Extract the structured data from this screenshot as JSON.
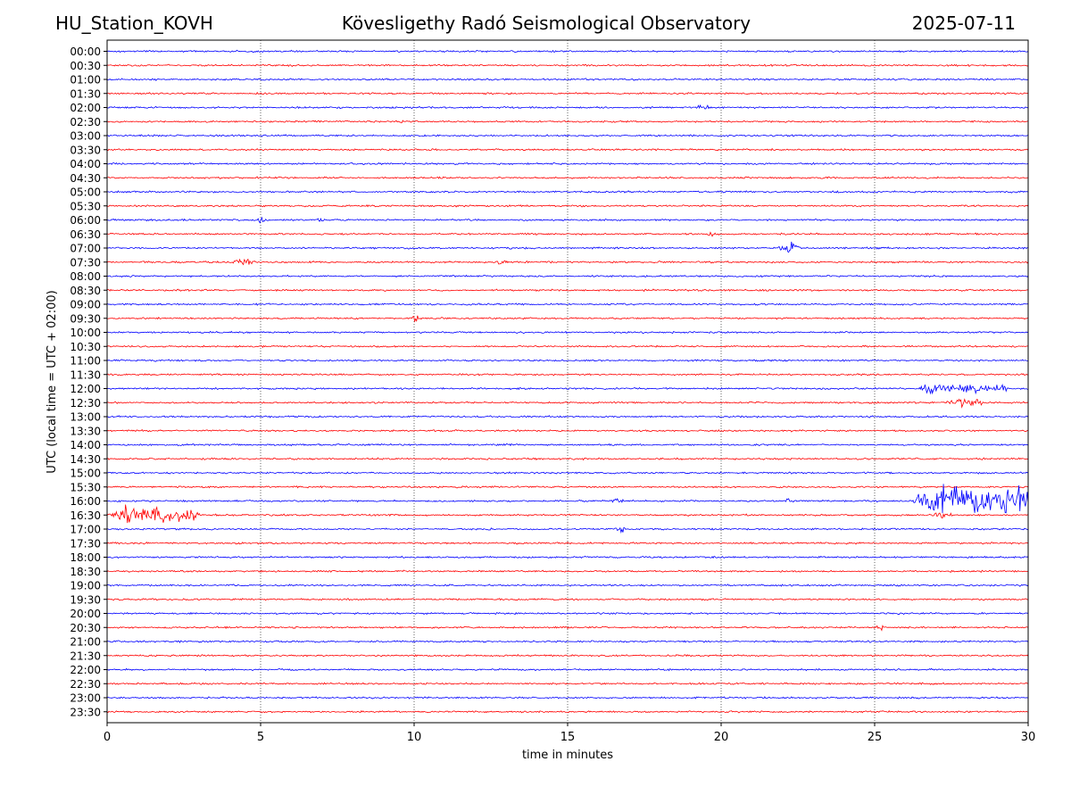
{
  "header": {
    "station": "HU_Station_KOVH",
    "observatory": "Kövesligethy Radó Seismological Observatory",
    "date": "2025-07-11"
  },
  "chart_data": {
    "type": "line",
    "title": "Kövesligethy Radó Seismological Observatory",
    "xlabel": "time in minutes",
    "ylabel": "UTC (local time = UTC + 02:00)",
    "xlim": [
      0,
      30
    ],
    "xticks": [
      0,
      5,
      10,
      15,
      20,
      25,
      30
    ],
    "grid": "vertical dotted at each x tick",
    "row_colors": [
      "#0000ff",
      "#ff0000"
    ],
    "rows": [
      "00:00",
      "00:30",
      "01:00",
      "01:30",
      "02:00",
      "02:30",
      "03:00",
      "03:30",
      "04:00",
      "04:30",
      "05:00",
      "05:30",
      "06:00",
      "06:30",
      "07:00",
      "07:30",
      "08:00",
      "08:30",
      "09:00",
      "09:30",
      "10:00",
      "10:30",
      "11:00",
      "11:30",
      "12:00",
      "12:30",
      "13:00",
      "13:30",
      "14:00",
      "14:30",
      "15:00",
      "15:30",
      "16:00",
      "16:30",
      "17:00",
      "17:30",
      "18:00",
      "18:30",
      "19:00",
      "19:30",
      "20:00",
      "20:30",
      "21:00",
      "21:30",
      "22:00",
      "22:30",
      "23:00",
      "23:30"
    ],
    "events": [
      {
        "row": "02:00",
        "t_min": 19.0,
        "duration_min": 0.8,
        "amplitude": 3
      },
      {
        "row": "02:30",
        "t_min": 9.5,
        "duration_min": 0.2,
        "amplitude": 3
      },
      {
        "row": "06:00",
        "t_min": 4.8,
        "duration_min": 0.4,
        "amplitude": 3
      },
      {
        "row": "06:00",
        "t_min": 6.8,
        "duration_min": 0.3,
        "amplitude": 2.5
      },
      {
        "row": "06:30",
        "t_min": 19.4,
        "duration_min": 0.6,
        "amplitude": 2.5
      },
      {
        "row": "07:00",
        "t_min": 21.8,
        "duration_min": 0.9,
        "amplitude": 5
      },
      {
        "row": "07:30",
        "t_min": 4.0,
        "duration_min": 1.0,
        "amplitude": 3
      },
      {
        "row": "07:30",
        "t_min": 12.6,
        "duration_min": 0.6,
        "amplitude": 3
      },
      {
        "row": "09:30",
        "t_min": 9.9,
        "duration_min": 0.4,
        "amplitude": 3.5
      },
      {
        "row": "12:00",
        "t_min": 26.3,
        "duration_min": 3.0,
        "amplitude": 5
      },
      {
        "row": "12:30",
        "t_min": 27.2,
        "duration_min": 1.5,
        "amplitude": 4
      },
      {
        "row": "16:00",
        "t_min": 16.4,
        "duration_min": 0.5,
        "amplitude": 3
      },
      {
        "row": "16:00",
        "t_min": 22.0,
        "duration_min": 0.4,
        "amplitude": 2.5
      },
      {
        "row": "16:00",
        "t_min": 26.2,
        "duration_min": 3.8,
        "amplitude": 16
      },
      {
        "row": "16:30",
        "t_min": 0.0,
        "duration_min": 3.0,
        "amplitude": 10
      },
      {
        "row": "16:30",
        "t_min": 26.8,
        "duration_min": 0.8,
        "amplitude": 4
      },
      {
        "row": "17:00",
        "t_min": 16.5,
        "duration_min": 0.4,
        "amplitude": 4
      },
      {
        "row": "20:30",
        "t_min": 25.0,
        "duration_min": 0.4,
        "amplitude": 2.5
      }
    ]
  }
}
